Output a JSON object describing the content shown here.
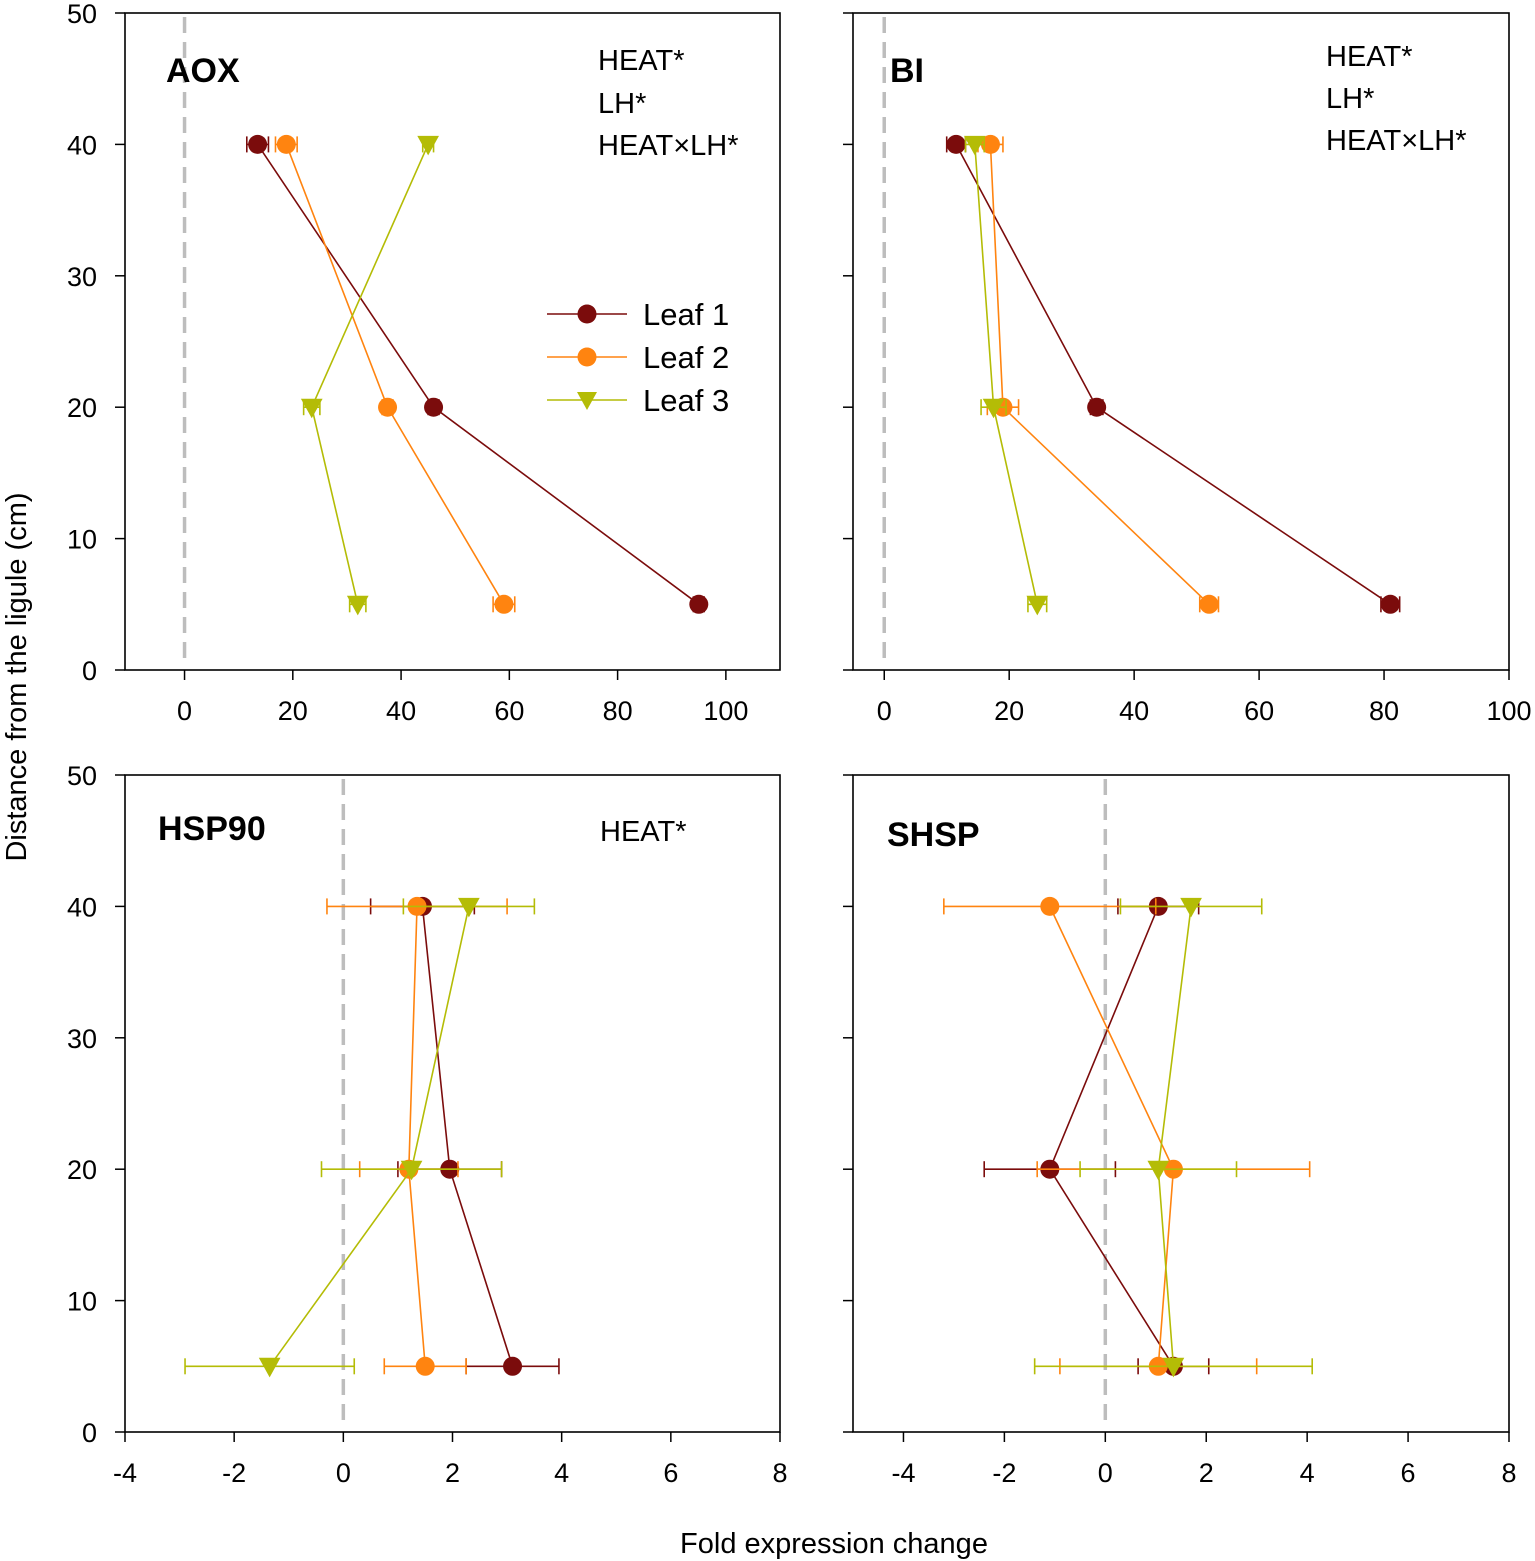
{
  "figure": {
    "ylabel": "Distance from the ligule (cm)",
    "xlabel": "Fold expression change"
  },
  "legend": {
    "entries": [
      {
        "name": "Leaf 1",
        "color": "#7b0c0c",
        "marker": "circle"
      },
      {
        "name": "Leaf 2",
        "color": "#ff8410",
        "marker": "circle"
      },
      {
        "name": "Leaf 3",
        "color": "#b4bc06",
        "marker": "triangle-down"
      }
    ]
  },
  "colors": {
    "leaf1": "#7b0c0c",
    "leaf2": "#ff8410",
    "leaf3": "#b4bc06",
    "zero_line": "#bdbdbd"
  },
  "chart_data": [
    {
      "type": "line",
      "title": "AOX",
      "annotations": [
        "HEAT*",
        "LH*",
        "HEAT×LH*"
      ],
      "xlim": [
        -11,
        110
      ],
      "ylim": [
        0,
        50
      ],
      "xticks": [
        0,
        20,
        40,
        60,
        80,
        100
      ],
      "yticks": [
        0,
        10,
        20,
        30,
        40,
        50
      ],
      "series": [
        {
          "name": "Leaf 1",
          "points": [
            {
              "x": 13.5,
              "y": 40,
              "err": 2
            },
            {
              "x": 46,
              "y": 20,
              "err": 1
            },
            {
              "x": 95,
              "y": 5,
              "err": 1
            }
          ]
        },
        {
          "name": "Leaf 2",
          "points": [
            {
              "x": 18.8,
              "y": 40,
              "err": 2
            },
            {
              "x": 37.5,
              "y": 20,
              "err": 1
            },
            {
              "x": 59,
              "y": 5,
              "err": 2
            }
          ]
        },
        {
          "name": "Leaf 3",
          "points": [
            {
              "x": 45,
              "y": 40,
              "err": 1
            },
            {
              "x": 23.5,
              "y": 20,
              "err": 1.5
            },
            {
              "x": 32,
              "y": 5,
              "err": 1.5
            }
          ]
        }
      ]
    },
    {
      "type": "line",
      "title": "BI",
      "annotations": [
        "HEAT*",
        "LH*",
        "HEAT×LH*"
      ],
      "xlim": [
        -5,
        100
      ],
      "ylim": [
        0,
        50
      ],
      "xticks": [
        0,
        20,
        40,
        60,
        80,
        100
      ],
      "yticks": [
        0,
        10,
        20,
        30,
        40,
        50
      ],
      "series": [
        {
          "name": "Leaf 1",
          "points": [
            {
              "x": 11.5,
              "y": 40,
              "err": 1.5
            },
            {
              "x": 34,
              "y": 20,
              "err": 1
            },
            {
              "x": 81,
              "y": 5,
              "err": 1.5
            }
          ]
        },
        {
          "name": "Leaf 2",
          "points": [
            {
              "x": 17,
              "y": 40,
              "err": 2
            },
            {
              "x": 19,
              "y": 20,
              "err": 2.5
            },
            {
              "x": 52,
              "y": 5,
              "err": 1.5
            }
          ]
        },
        {
          "name": "Leaf 3",
          "points": [
            {
              "x": 14.5,
              "y": 40,
              "err": 1.5
            },
            {
              "x": 17.5,
              "y": 20,
              "err": 2
            },
            {
              "x": 24.5,
              "y": 5,
              "err": 1.5
            }
          ]
        }
      ]
    },
    {
      "type": "line",
      "title": "HSP90",
      "annotations": [
        "HEAT*"
      ],
      "xlim": [
        -4,
        8
      ],
      "ylim": [
        0,
        50
      ],
      "xticks": [
        -4,
        -2,
        0,
        2,
        4,
        6,
        8
      ],
      "yticks": [
        0,
        10,
        20,
        30,
        40,
        50
      ],
      "series": [
        {
          "name": "Leaf 1",
          "points": [
            {
              "x": 1.45,
              "y": 40,
              "err": 0.95
            },
            {
              "x": 1.95,
              "y": 20,
              "err": 0.95
            },
            {
              "x": 3.1,
              "y": 5,
              "err": 0.85
            }
          ]
        },
        {
          "name": "Leaf 2",
          "points": [
            {
              "x": 1.35,
              "y": 40,
              "err": 1.65
            },
            {
              "x": 1.2,
              "y": 20,
              "err": 0.9
            },
            {
              "x": 1.5,
              "y": 5,
              "err": 0.75
            }
          ]
        },
        {
          "name": "Leaf 3",
          "points": [
            {
              "x": 2.3,
              "y": 40,
              "err": 1.2
            },
            {
              "x": 1.25,
              "y": 20,
              "err": 1.65
            },
            {
              "x": -1.35,
              "y": 5,
              "err": 1.55
            }
          ]
        }
      ]
    },
    {
      "type": "line",
      "title": "SHSP",
      "annotations": [],
      "xlim": [
        -5,
        8
      ],
      "ylim": [
        0,
        50
      ],
      "xticks": [
        -4,
        -2,
        0,
        2,
        4,
        6,
        8
      ],
      "yticks": [
        0,
        10,
        20,
        30,
        40,
        50
      ],
      "series": [
        {
          "name": "Leaf 1",
          "points": [
            {
              "x": 1.05,
              "y": 40,
              "err": 0.8
            },
            {
              "x": -1.1,
              "y": 20,
              "err": 1.3
            },
            {
              "x": 1.35,
              "y": 5,
              "err": 0.7
            }
          ]
        },
        {
          "name": "Leaf 2",
          "points": [
            {
              "x": -1.1,
              "y": 40,
              "err": 2.1
            },
            {
              "x": 1.35,
              "y": 20,
              "err": 2.7
            },
            {
              "x": 1.05,
              "y": 5,
              "err": 1.95
            }
          ]
        },
        {
          "name": "Leaf 3",
          "points": [
            {
              "x": 1.7,
              "y": 40,
              "err": 1.4
            },
            {
              "x": 1.05,
              "y": 20,
              "err": 1.55
            },
            {
              "x": 1.35,
              "y": 5,
              "err": 2.75
            }
          ]
        }
      ]
    }
  ]
}
